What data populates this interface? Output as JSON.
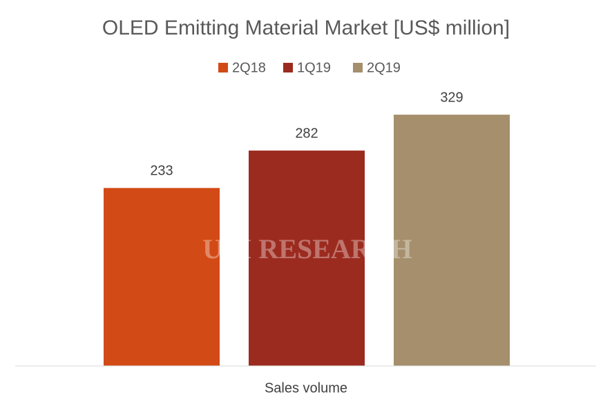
{
  "chart_data": {
    "type": "bar",
    "title": "OLED Emitting Material Market [US$ million]",
    "categories": [
      "Sales volume"
    ],
    "series": [
      {
        "name": "2Q18",
        "color": "#d24a16",
        "values": [
          233
        ]
      },
      {
        "name": "1Q19",
        "color": "#9c2b1f",
        "values": [
          282
        ]
      },
      {
        "name": "2Q19",
        "color": "#a58f6c",
        "values": [
          329
        ]
      }
    ],
    "legend": "top",
    "watermark": "UBI RESEARCH"
  }
}
